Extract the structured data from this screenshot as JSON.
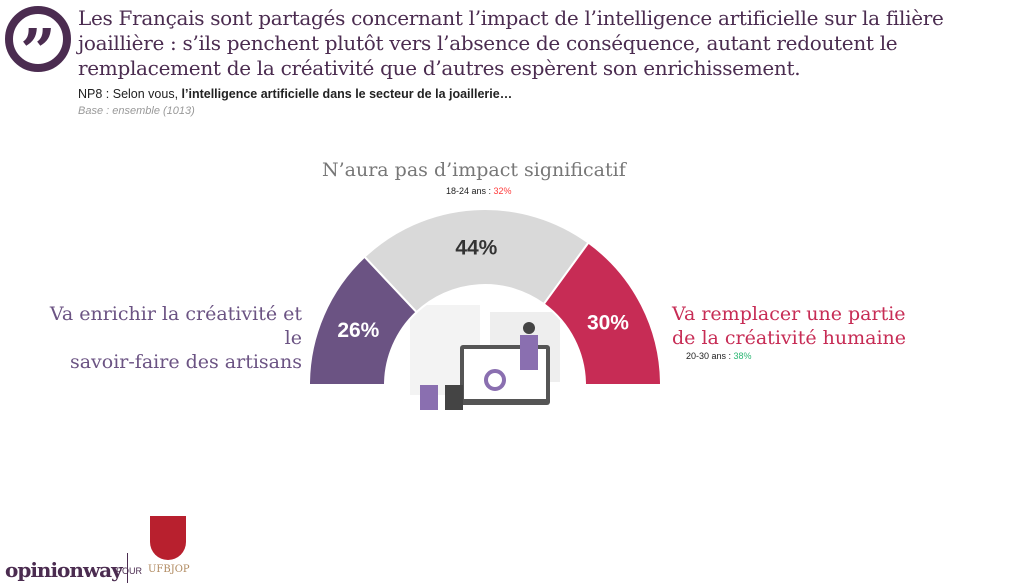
{
  "header": {
    "title": "Les Français sont partagés concernant l’impact de l’intelligence artificielle sur la filière joaillière : s’ils penchent plutôt vers l’absence de conséquence, autant redoutent le remplacement de la créativité que d’autres espèrent son enrichissement.",
    "question_code": "NP8 : Selon vous, ",
    "question_bold": "l’intelligence artificielle dans le secteur de la joaillerie…",
    "base": "Base : ensemble (1013)",
    "quote_icon": "quote-icon"
  },
  "chart_data": {
    "type": "pie",
    "subtype": "half-donut",
    "unit": "%",
    "series": [
      {
        "name": "Va enrichir la créativité et le savoir-faire des artisans",
        "value": 26,
        "label": "26%",
        "color": "#6b5383",
        "note_group": "",
        "note_value": ""
      },
      {
        "name": "N’aura pas d’impact significatif",
        "value": 44,
        "label": "44%",
        "color": "#d9d9d9",
        "note_group": "18-24 ans : ",
        "note_value": "32%",
        "note_color": "#ff3b3b"
      },
      {
        "name": "Va remplacer une partie de la créativité humaine",
        "value": 30,
        "label": "30%",
        "color": "#c72c55",
        "note_group": "20-30 ans : ",
        "note_value": "38%",
        "note_color": "#2bb673"
      }
    ]
  },
  "labels": {
    "left": [
      "Va enrichir la créativité et le",
      "savoir-faire des artisans"
    ],
    "top": "N’aura pas d’impact significatif",
    "right": [
      "Va remplacer une partie",
      "de la créativité humaine"
    ]
  },
  "footer": {
    "brand": "opinionway",
    "pour": "POUR",
    "client": "UFBJOP"
  }
}
